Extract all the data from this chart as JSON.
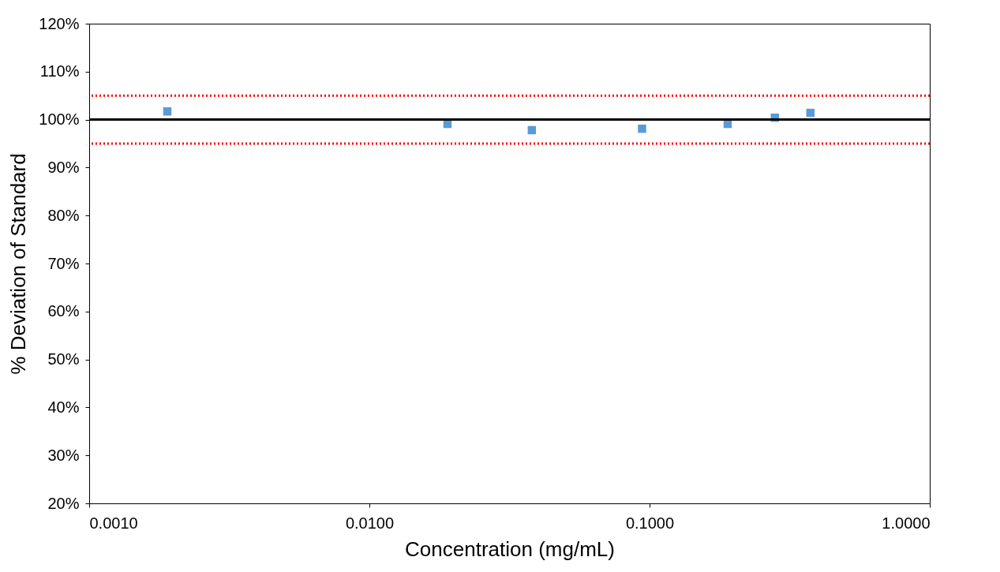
{
  "chart_data": {
    "type": "scatter",
    "xlabel": "Concentration (mg/mL)",
    "ylabel": "% Deviation of Standard",
    "x": [
      0.0019,
      0.019,
      0.038,
      0.094,
      0.19,
      0.28,
      0.375
    ],
    "series": [
      {
        "color": "#5b9bd5",
        "values": [
          101.7,
          99.1,
          97.8,
          98.1,
          99.1,
          100.4,
          101.4
        ]
      }
    ],
    "log": "x",
    "marker": "square",
    "grid": false,
    "legend": false,
    "xlim": [
      0.001,
      1
    ],
    "xticks": [
      {
        "value": 0.001,
        "label": "0.0010"
      },
      {
        "value": 0.01,
        "label": "0.0100"
      },
      {
        "value": 0.1,
        "label": "0.1000"
      },
      {
        "value": 1,
        "label": "1.0000"
      }
    ],
    "ylim": [
      20,
      120
    ],
    "yticks": [
      {
        "value": 20,
        "label": "20%"
      },
      {
        "value": 30,
        "label": "30%"
      },
      {
        "value": 40,
        "label": "40%"
      },
      {
        "value": 50,
        "label": "50%"
      },
      {
        "value": 60,
        "label": "60%"
      },
      {
        "value": 70,
        "label": "70%"
      },
      {
        "value": 80,
        "label": "80%"
      },
      {
        "value": 90,
        "label": "90%"
      },
      {
        "value": 100,
        "label": "100%"
      },
      {
        "value": 110,
        "label": "110%"
      },
      {
        "value": 120,
        "label": "120%"
      }
    ],
    "ref_lines": [
      {
        "axis": "y",
        "value": 100,
        "color": "#000000",
        "line_style": "solid"
      },
      {
        "axis": "y",
        "value": 105,
        "color": "#ff0000",
        "line_style": "dotted"
      },
      {
        "axis": "y",
        "value": 95,
        "color": "#ff0000",
        "line_style": "dotted"
      }
    ]
  }
}
